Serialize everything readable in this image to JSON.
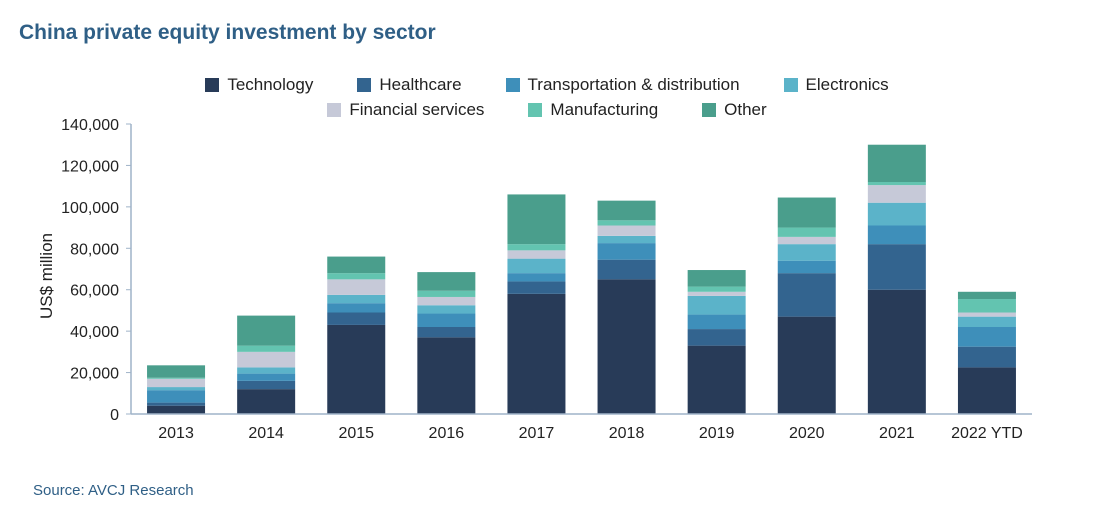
{
  "title": "China private equity investment by sector",
  "source": "Source: AVCJ Research",
  "chart_data": {
    "type": "bar",
    "stacked": true,
    "title": "China private equity investment by sector",
    "xlabel": "",
    "ylabel": "US$ million",
    "ylim": [
      0,
      140000
    ],
    "yticks": [
      0,
      20000,
      40000,
      60000,
      80000,
      100000,
      120000,
      140000
    ],
    "ytick_labels": [
      "0",
      "20,000",
      "40,000",
      "60,000",
      "80,000",
      "100,000",
      "120,000",
      "140,000"
    ],
    "grid": false,
    "legend_position": "top-center",
    "categories": [
      "2013",
      "2014",
      "2015",
      "2016",
      "2017",
      "2018",
      "2019",
      "2020",
      "2021",
      "2022 YTD"
    ],
    "series": [
      {
        "name": "Technology",
        "color": "#283b58",
        "values": [
          4000,
          12000,
          43000,
          37000,
          58000,
          65000,
          33000,
          47000,
          60000,
          22500
        ]
      },
      {
        "name": "Healthcare",
        "color": "#33648f",
        "values": [
          1500,
          4000,
          6000,
          5000,
          6000,
          9500,
          8000,
          21000,
          22000,
          10000
        ]
      },
      {
        "name": "Transportation & distribution",
        "color": "#3e8fba",
        "values": [
          6000,
          3500,
          4500,
          6500,
          4000,
          8000,
          7000,
          6000,
          9000,
          9500
        ]
      },
      {
        "name": "Electronics",
        "color": "#5bb3c9",
        "values": [
          1500,
          3000,
          4000,
          4000,
          7000,
          3500,
          9000,
          8000,
          11000,
          5000
        ]
      },
      {
        "name": "Financial services",
        "color": "#c6c9d8",
        "values": [
          4000,
          7500,
          7500,
          4000,
          4000,
          5000,
          2000,
          3500,
          8500,
          2000
        ]
      },
      {
        "name": "Manufacturing",
        "color": "#63c4b0",
        "values": [
          500,
          3000,
          3000,
          3000,
          3000,
          2500,
          2500,
          4500,
          1500,
          6500
        ]
      },
      {
        "name": "Other",
        "color": "#4a9e8c",
        "values": [
          6000,
          14500,
          8000,
          9000,
          24000,
          9500,
          8000,
          14500,
          18000,
          3500
        ]
      }
    ]
  }
}
